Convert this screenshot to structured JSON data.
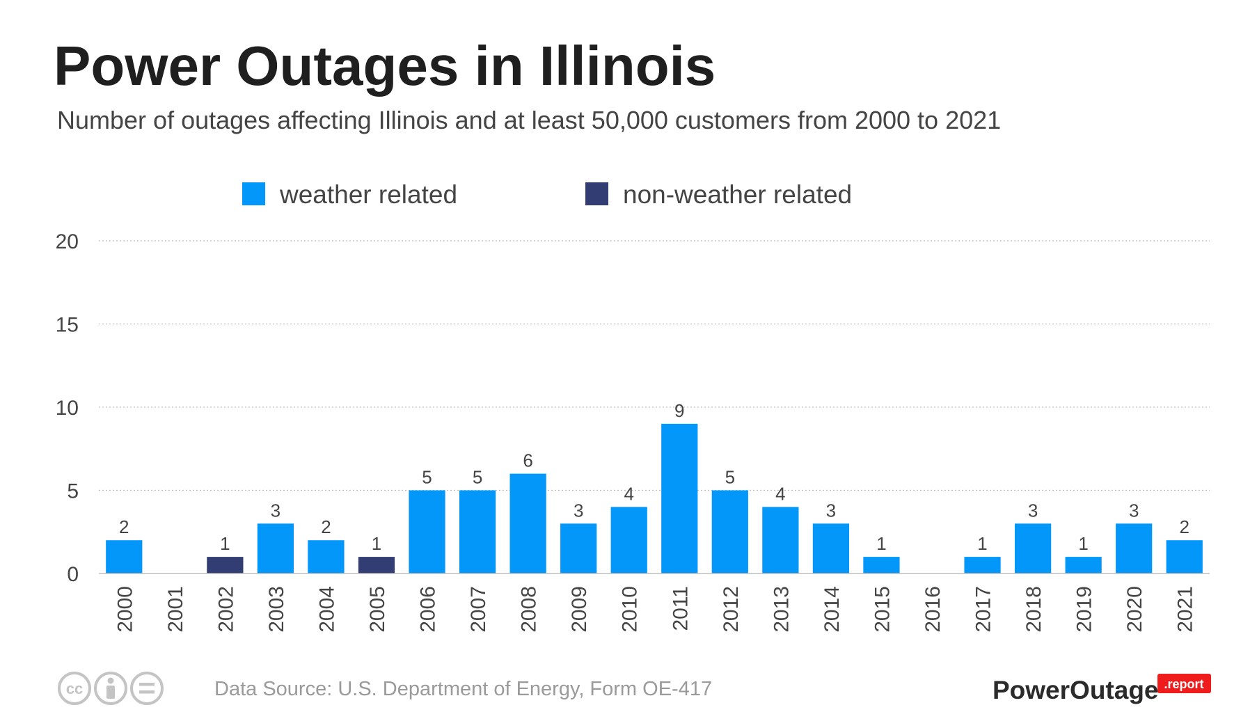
{
  "title": "Power Outages in Illinois",
  "subtitle": "Number of outages affecting Illinois and at least 50,000 customers from 2000 to 2021",
  "legend": [
    {
      "key": "weather",
      "label": "weather related",
      "color": "#0497fa"
    },
    {
      "key": "nonweather",
      "label": "non-weather related",
      "color": "#323e73"
    }
  ],
  "footer": {
    "source": "Data Source: U.S. Department of Energy, Form OE-417",
    "brand_name": "PowerOutage",
    "brand_badge": ".report",
    "brand_badge_color": "#ef1c1c",
    "license_icons": [
      "cc-icon",
      "attribution-icon",
      "no-derivatives-icon"
    ]
  },
  "chart_data": {
    "type": "bar",
    "title": "Power Outages in Illinois",
    "subtitle": "Number of outages affecting Illinois and at least 50,000 customers from 2000 to 2021",
    "xlabel": "",
    "ylabel": "",
    "ylim": [
      0,
      20
    ],
    "yticks": [
      0,
      5,
      10,
      15,
      20
    ],
    "grid": true,
    "legend_position": "top",
    "categories": [
      "2000",
      "2001",
      "2002",
      "2003",
      "2004",
      "2005",
      "2006",
      "2007",
      "2008",
      "2009",
      "2010",
      "2011",
      "2012",
      "2013",
      "2014",
      "2015",
      "2016",
      "2017",
      "2018",
      "2019",
      "2020",
      "2021"
    ],
    "series": [
      {
        "name": "weather related",
        "color": "#0497fa",
        "values": [
          2,
          0,
          0,
          3,
          2,
          0,
          5,
          5,
          6,
          3,
          4,
          9,
          5,
          4,
          3,
          1,
          0,
          1,
          3,
          1,
          3,
          2
        ]
      },
      {
        "name": "non-weather related",
        "color": "#323e73",
        "values": [
          0,
          0,
          1,
          0,
          0,
          1,
          0,
          0,
          0,
          0,
          0,
          0,
          0,
          0,
          0,
          0,
          0,
          0,
          0,
          0,
          0,
          0
        ]
      }
    ],
    "totals": [
      2,
      0,
      1,
      3,
      2,
      1,
      5,
      5,
      6,
      3,
      4,
      9,
      5,
      4,
      3,
      1,
      0,
      1,
      3,
      1,
      3,
      2
    ]
  }
}
